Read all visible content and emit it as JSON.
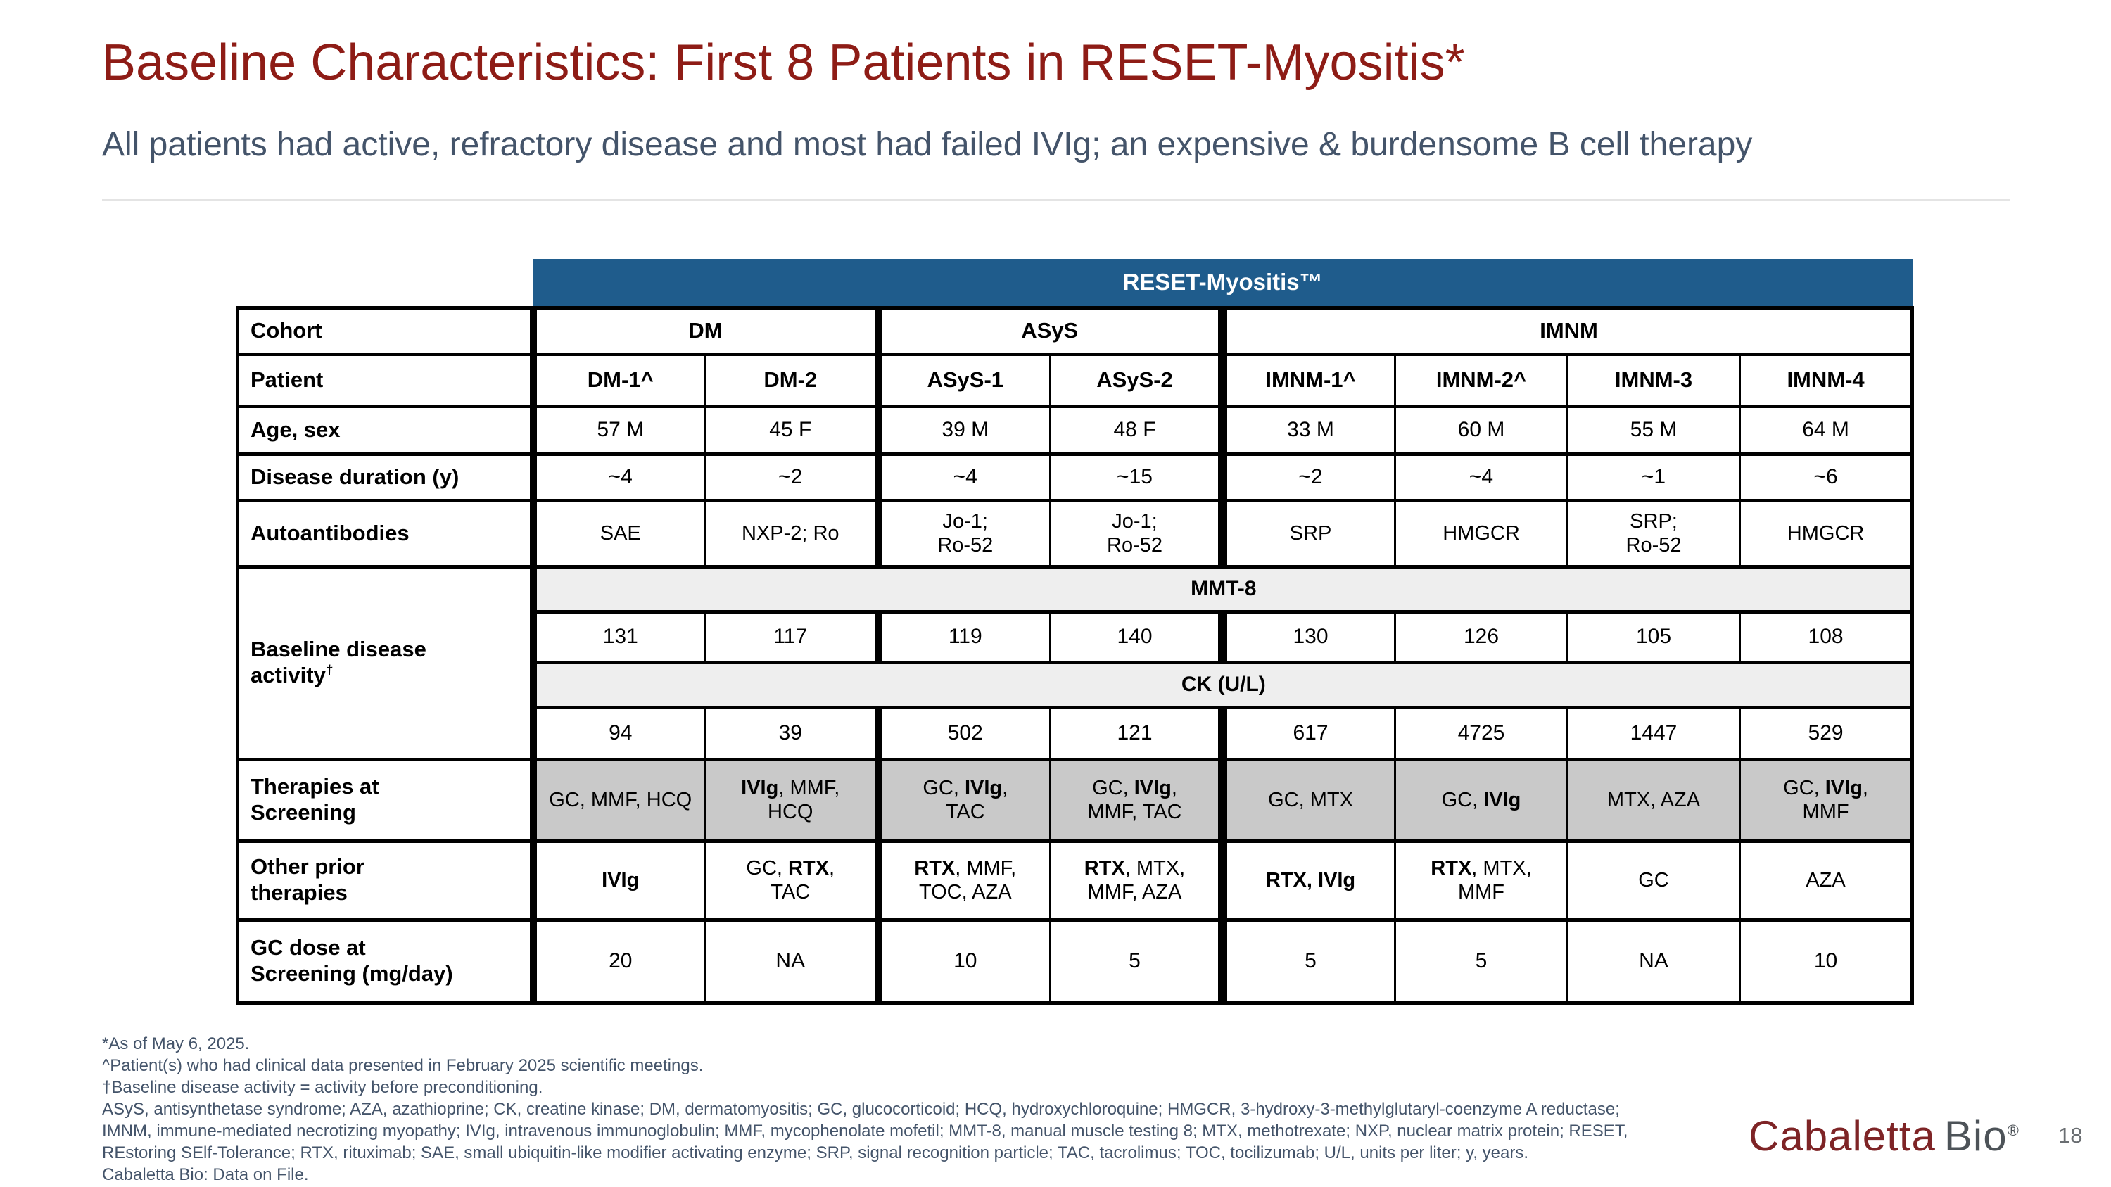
{
  "title": "Baseline Characteristics: First 8 Patients in RESET-Myositis*",
  "subtitle": "All patients had active, refractory disease and most had failed IVIg; an expensive & burdensome B cell therapy",
  "colors": {
    "title_maroon": "#8E1C16",
    "subtitle_slate": "#44546A",
    "banner_blue": "#1F5C8C",
    "band_gray": "#EEEEEE",
    "shade_gray": "#C9C9C9",
    "logo_maroon": "#7E2426",
    "logo_gray": "#4D5358"
  },
  "table": {
    "banner": "RESET-Myositis™",
    "row_labels": {
      "cohort": "Cohort",
      "patient": "Patient",
      "age_sex": "Age, sex",
      "disease_duration": "Disease duration (y)",
      "autoantibodies": "Autoantibodies",
      "baseline_activity": "Baseline disease\nactivity",
      "baseline_activity_sup": "†",
      "therapies_at_screening": "Therapies at\nScreening",
      "other_prior_therapies": "Other prior\ntherapies",
      "gc_dose": "GC dose at\nScreening (mg/day)"
    },
    "cohorts": [
      "DM",
      "ASyS",
      "IMNM"
    ],
    "patients": [
      "DM-1^",
      "DM-2",
      "ASyS-1",
      "ASyS-2",
      "IMNM-1^",
      "IMNM-2^",
      "IMNM-3",
      "IMNM-4"
    ],
    "age_sex": [
      "57 M",
      "45 F",
      "39 M",
      "48 F",
      "33 M",
      "60 M",
      "55 M",
      "64 M"
    ],
    "disease_duration": [
      "~4",
      "~2",
      "~4",
      "~15",
      "~2",
      "~4",
      "~1",
      "~6"
    ],
    "autoantibodies": [
      "SAE",
      "NXP-2; Ro",
      "Jo-1;\nRo-52",
      "Jo-1;\nRo-52",
      "SRP",
      "HMGCR",
      "SRP;\nRo-52",
      "HMGCR"
    ],
    "mmt8_label": "MMT-8",
    "mmt8": [
      "131",
      "117",
      "119",
      "140",
      "130",
      "126",
      "105",
      "108"
    ],
    "ck_label": "CK (U/L)",
    "ck": [
      "94",
      "39",
      "502",
      "121",
      "617",
      "4725",
      "1447",
      "529"
    ],
    "therapies_at_screening": [
      [
        [
          "GC, MMF, HCQ",
          false
        ]
      ],
      [
        [
          "IVIg",
          true
        ],
        [
          ", MMF,\nHCQ",
          false
        ]
      ],
      [
        [
          "GC, ",
          false
        ],
        [
          "IVIg",
          true
        ],
        [
          ",\nTAC",
          false
        ]
      ],
      [
        [
          "GC, ",
          false
        ],
        [
          "IVIg",
          true
        ],
        [
          ",\nMMF, TAC",
          false
        ]
      ],
      [
        [
          "GC, MTX",
          false
        ]
      ],
      [
        [
          "GC, ",
          false
        ],
        [
          "IVIg",
          true
        ]
      ],
      [
        [
          "MTX, AZA",
          false
        ]
      ],
      [
        [
          "GC, ",
          false
        ],
        [
          "IVIg",
          true
        ],
        [
          ",\nMMF",
          false
        ]
      ]
    ],
    "other_prior_therapies": [
      [
        [
          "IVIg",
          true
        ]
      ],
      [
        [
          "GC, ",
          false
        ],
        [
          "RTX",
          true
        ],
        [
          ",\nTAC",
          false
        ]
      ],
      [
        [
          "RTX",
          true
        ],
        [
          ", MMF,\nTOC, AZA",
          false
        ]
      ],
      [
        [
          "RTX",
          true
        ],
        [
          ", MTX,\nMMF, AZA",
          false
        ]
      ],
      [
        [
          "RTX, IVIg",
          true
        ]
      ],
      [
        [
          "RTX",
          true
        ],
        [
          ", MTX,\nMMF",
          false
        ]
      ],
      [
        [
          "GC",
          false
        ]
      ],
      [
        [
          "AZA",
          false
        ]
      ]
    ],
    "gc_dose": [
      "20",
      "NA",
      "10",
      "5",
      "5",
      "5",
      "NA",
      "10"
    ]
  },
  "footnotes": [
    "*As of May 6, 2025.",
    "^Patient(s) who had clinical data presented in February 2025 scientific meetings.",
    "†Baseline disease activity = activity before preconditioning.",
    "ASyS, antisynthetase syndrome; AZA, azathioprine; CK, creatine kinase; DM, dermatomyositis; GC, glucocorticoid; HCQ, hydroxychloroquine; HMGCR, 3-hydroxy-3-methylglutaryl-coenzyme A reductase;",
    "IMNM, immune-mediated necrotizing myopathy; IVIg, intravenous immunoglobulin; MMF, mycophenolate mofetil; MMT-8, manual muscle testing 8; MTX, methotrexate; NXP, nuclear matrix protein; RESET,",
    "REstoring SElf-Tolerance; RTX, rituximab; SAE, small ubiquitin-like modifier activating enzyme; SRP, signal recognition particle; TAC, tacrolimus; TOC, tocilizumab; U/L, units per liter; y, years.",
    "Cabaletta Bio: Data on File."
  ],
  "footer": {
    "logo_primary": "Cabaletta",
    "logo_secondary": "Bio",
    "logo_reg": "®",
    "page_number": "18"
  }
}
